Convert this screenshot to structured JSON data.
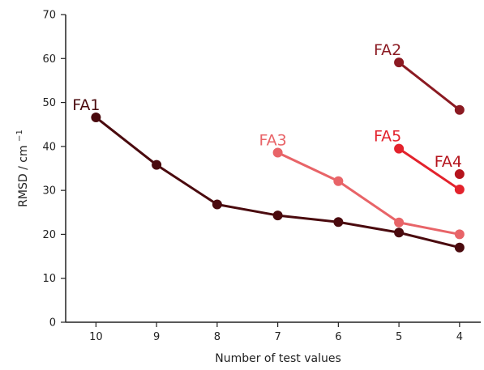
{
  "chart_data": {
    "type": "line",
    "title": "",
    "xlabel": "Number of test values",
    "ylabel_main": "RMSD / cm",
    "ylabel_sup": "−1",
    "x_ticks": [
      10,
      9,
      8,
      7,
      6,
      5,
      4
    ],
    "y_ticks": [
      0,
      10,
      20,
      30,
      40,
      50,
      60,
      70
    ],
    "xlim": [
      10.5,
      3.65
    ],
    "ylim": [
      0,
      70
    ],
    "x_reversed": true,
    "grid": false,
    "legend": "none",
    "series": [
      {
        "name": "FA1",
        "color": "#4a0a0e",
        "x": [
          10,
          9,
          8,
          7,
          6,
          5,
          4
        ],
        "y": [
          46.6,
          35.8,
          26.8,
          24.3,
          22.8,
          20.4,
          17.0
        ]
      },
      {
        "name": "FA2",
        "color": "#8b1a22",
        "x": [
          5,
          4
        ],
        "y": [
          59.1,
          48.3
        ]
      },
      {
        "name": "FA3",
        "color": "#e86468",
        "x": [
          7,
          6,
          5,
          4
        ],
        "y": [
          38.6,
          32.1,
          22.7,
          20.0
        ]
      },
      {
        "name": "FA4",
        "color": "#b5141d",
        "x": [
          4
        ],
        "y": [
          33.7
        ]
      },
      {
        "name": "FA5",
        "color": "#e3222c",
        "x": [
          5,
          4
        ],
        "y": [
          39.5,
          30.2
        ]
      }
    ]
  }
}
